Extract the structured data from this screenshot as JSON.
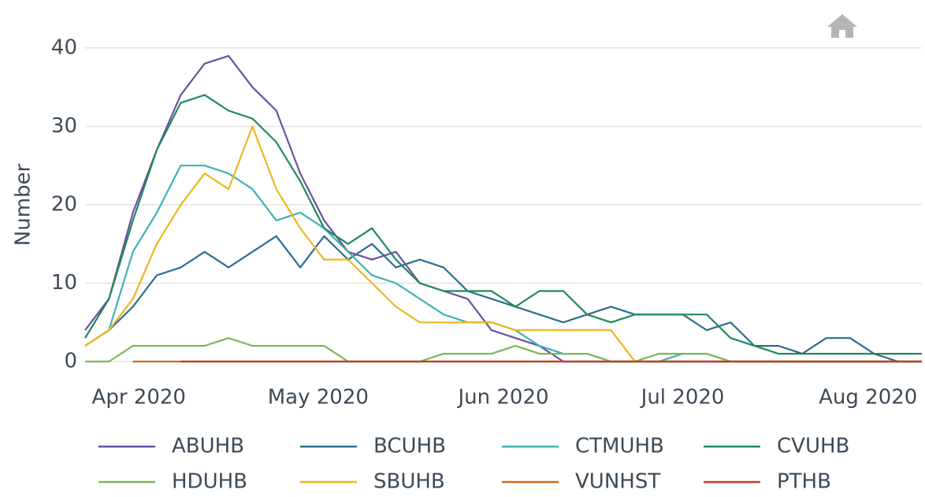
{
  "chart_data": {
    "type": "line",
    "y_label": "Number",
    "x": [
      "2020-03-23",
      "2020-03-27",
      "2020-03-31",
      "2020-04-04",
      "2020-04-08",
      "2020-04-12",
      "2020-04-16",
      "2020-04-20",
      "2020-04-24",
      "2020-04-28",
      "2020-05-02",
      "2020-05-06",
      "2020-05-10",
      "2020-05-14",
      "2020-05-18",
      "2020-05-22",
      "2020-05-26",
      "2020-05-30",
      "2020-06-03",
      "2020-06-07",
      "2020-06-11",
      "2020-06-15",
      "2020-06-19",
      "2020-06-23",
      "2020-06-27",
      "2020-07-01",
      "2020-07-05",
      "2020-07-09",
      "2020-07-13",
      "2020-07-17",
      "2020-07-21",
      "2020-07-25",
      "2020-07-29",
      "2020-08-02",
      "2020-08-06",
      "2020-08-10"
    ],
    "xlim": [
      "2020-03-23",
      "2020-08-10"
    ],
    "xticks": [
      {
        "value": "2020-04-01",
        "label": "Apr 2020"
      },
      {
        "value": "2020-05-01",
        "label": "May 2020"
      },
      {
        "value": "2020-06-01",
        "label": "Jun 2020"
      },
      {
        "value": "2020-07-01",
        "label": "Jul 2020"
      },
      {
        "value": "2020-08-01",
        "label": "Aug 2020"
      }
    ],
    "ylim": [
      -0.6,
      41.6
    ],
    "yticks": [
      0,
      10,
      20,
      30,
      40
    ],
    "grid": true,
    "series": [
      {
        "name": "ABUHB",
        "color": "#6a51a3",
        "values": [
          4,
          8,
          19,
          27,
          34,
          38,
          39,
          35,
          32,
          24,
          18,
          14,
          13,
          14,
          10,
          9,
          8,
          4,
          3,
          2,
          0,
          0,
          0,
          0,
          0,
          0,
          0,
          0,
          0,
          0,
          0,
          0,
          0,
          0,
          0,
          0
        ]
      },
      {
        "name": "BCUHB",
        "color": "#2c6e8f",
        "values": [
          2,
          4,
          7,
          11,
          12,
          14,
          12,
          14,
          16,
          12,
          16,
          13,
          15,
          12,
          13,
          12,
          9,
          8,
          7,
          6,
          5,
          6,
          7,
          6,
          6,
          6,
          4,
          5,
          2,
          2,
          1,
          3,
          3,
          1,
          0,
          0
        ]
      },
      {
        "name": "CTMUHB",
        "color": "#3fb2b2",
        "values": [
          2,
          4,
          14,
          19,
          25,
          25,
          24,
          22,
          18,
          19,
          17,
          14,
          11,
          10,
          8,
          6,
          5,
          5,
          4,
          2,
          1,
          1,
          0,
          0,
          0,
          1,
          1,
          0,
          0,
          0,
          0,
          0,
          0,
          0,
          0,
          0
        ]
      },
      {
        "name": "CVUHB",
        "color": "#1e8a5a",
        "values": [
          3,
          8,
          18,
          27,
          33,
          34,
          32,
          31,
          28,
          23,
          17,
          15,
          17,
          13,
          10,
          9,
          9,
          9,
          7,
          9,
          9,
          6,
          5,
          6,
          6,
          6,
          6,
          3,
          2,
          1,
          1,
          1,
          1,
          1,
          1,
          1
        ]
      },
      {
        "name": "HDUHB",
        "color": "#7cb85a",
        "values": [
          0,
          0,
          2,
          2,
          2,
          2,
          3,
          2,
          2,
          2,
          2,
          0,
          0,
          0,
          0,
          1,
          1,
          1,
          2,
          1,
          1,
          1,
          0,
          0,
          1,
          1,
          1,
          0,
          0,
          0,
          0,
          0,
          0,
          0,
          0,
          0
        ]
      },
      {
        "name": "SBUHB",
        "color": "#f0b51e",
        "values": [
          2,
          4,
          8,
          15,
          20,
          24,
          22,
          30,
          22,
          17,
          13,
          13,
          10,
          7,
          5,
          5,
          5,
          5,
          4,
          4,
          4,
          4,
          4,
          0,
          0,
          0,
          0,
          0,
          0,
          0,
          0,
          0,
          0,
          0,
          0,
          0
        ]
      },
      {
        "name": "VUNHST",
        "color": "#d2691e",
        "values": [
          null,
          null,
          0,
          0,
          0,
          0,
          0,
          0,
          0,
          0,
          0,
          0,
          0,
          0,
          0,
          0,
          0,
          0,
          0,
          0,
          0,
          0,
          0,
          0,
          0,
          0,
          0,
          0,
          0,
          0,
          0,
          0,
          0,
          0,
          0,
          0
        ]
      },
      {
        "name": "PTHB",
        "color": "#c0392b",
        "values": [
          null,
          null,
          null,
          null,
          0,
          0,
          0,
          0,
          0,
          0,
          0,
          0,
          0,
          0,
          0,
          0,
          0,
          0,
          0,
          0,
          0,
          0,
          0,
          0,
          0,
          0,
          0,
          0,
          0,
          0,
          0,
          0,
          0,
          0,
          0,
          0
        ]
      }
    ]
  }
}
